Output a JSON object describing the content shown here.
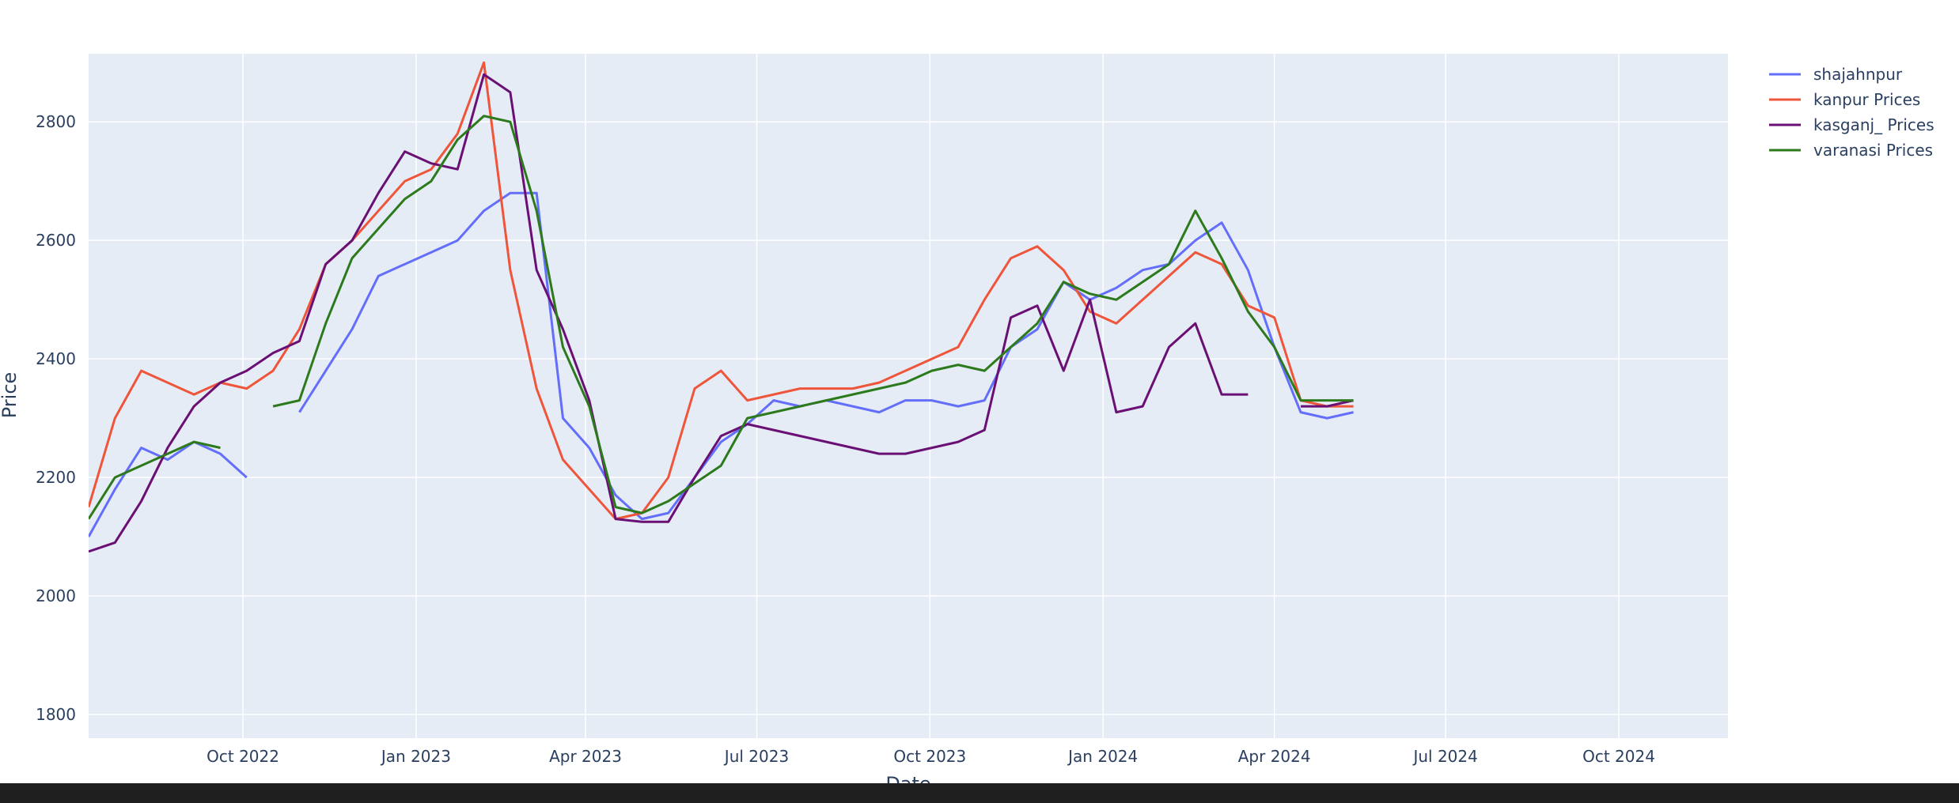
{
  "chart_data": {
    "type": "line",
    "title": "",
    "xlabel": "Date",
    "ylabel": "Price",
    "xlim": [
      "2022-07-11",
      "2024-11-28"
    ],
    "ylim": [
      1760,
      2915
    ],
    "grid": true,
    "legend_position": "top-right",
    "x_ticks": [
      {
        "date": "2022-10-01",
        "label": "Oct 2022"
      },
      {
        "date": "2023-01-01",
        "label": "Jan 2023"
      },
      {
        "date": "2023-04-01",
        "label": "Apr 2023"
      },
      {
        "date": "2023-07-01",
        "label": "Jul 2023"
      },
      {
        "date": "2023-10-01",
        "label": "Oct 2023"
      },
      {
        "date": "2024-01-01",
        "label": "Jan 2024"
      },
      {
        "date": "2024-04-01",
        "label": "Apr 2024"
      },
      {
        "date": "2024-07-01",
        "label": "Jul 2024"
      },
      {
        "date": "2024-10-01",
        "label": "Oct 2024"
      }
    ],
    "y_ticks": [
      1800,
      2000,
      2200,
      2400,
      2600,
      2800
    ],
    "series": [
      {
        "name": "shajahnpur",
        "color": "#636efa",
        "x": [
          "2022-07-11",
          "2022-07-25",
          "2022-08-08",
          "2022-08-22",
          "2022-09-05",
          "2022-09-19",
          "2022-10-03",
          "2022-10-17",
          "2022-10-31",
          "2022-11-14",
          "2022-11-28",
          "2022-12-12",
          "2022-12-26",
          "2023-01-09",
          "2023-01-23",
          "2023-02-06",
          "2023-02-20",
          "2023-03-06",
          "2023-03-20",
          "2023-04-03",
          "2023-04-17",
          "2023-05-01",
          "2023-05-15",
          "2023-05-29",
          "2023-06-12",
          "2023-06-26",
          "2023-07-10",
          "2023-07-24",
          "2023-08-07",
          "2023-08-21",
          "2023-09-04",
          "2023-09-18",
          "2023-10-02",
          "2023-10-16",
          "2023-10-30",
          "2023-11-13",
          "2023-11-27",
          "2023-12-11",
          "2023-12-25",
          "2024-01-08",
          "2024-01-22",
          "2024-02-05",
          "2024-02-19",
          "2024-03-04",
          "2024-03-18",
          "2024-04-01",
          "2024-04-15",
          "2024-04-29",
          "2024-05-13"
        ],
        "y": [
          2100,
          2180,
          2250,
          2230,
          2260,
          2240,
          2200,
          null,
          2310,
          2380,
          2450,
          2540,
          2560,
          2580,
          2600,
          2650,
          2680,
          2680,
          2300,
          2250,
          2170,
          2130,
          2140,
          2200,
          2260,
          2290,
          2330,
          2320,
          2330,
          2320,
          2310,
          2330,
          2330,
          2320,
          2330,
          2420,
          2450,
          2530,
          2500,
          2520,
          2550,
          2560,
          2600,
          2630,
          2550,
          2420,
          2310,
          2300,
          2310
        ]
      },
      {
        "name": "kanpur Prices",
        "color": "#ef553b",
        "x": [
          "2022-07-11",
          "2022-07-25",
          "2022-08-08",
          "2022-08-22",
          "2022-09-05",
          "2022-09-19",
          "2022-10-03",
          "2022-10-17",
          "2022-10-31",
          "2022-11-14",
          "2022-11-28",
          "2022-12-12",
          "2022-12-26",
          "2023-01-09",
          "2023-01-23",
          "2023-02-06",
          "2023-02-20",
          "2023-03-06",
          "2023-03-20",
          "2023-04-03",
          "2023-04-17",
          "2023-05-01",
          "2023-05-15",
          "2023-05-29",
          "2023-06-12",
          "2023-06-26",
          "2023-07-10",
          "2023-07-24",
          "2023-08-07",
          "2023-08-21",
          "2023-09-04",
          "2023-09-18",
          "2023-10-02",
          "2023-10-16",
          "2023-10-30",
          "2023-11-13",
          "2023-11-27",
          "2023-12-11",
          "2023-12-25",
          "2024-01-08",
          "2024-01-22",
          "2024-02-05",
          "2024-02-19",
          "2024-03-04",
          "2024-03-18",
          "2024-04-01",
          "2024-04-15",
          "2024-04-29",
          "2024-05-13"
        ],
        "y": [
          2150,
          2300,
          2380,
          2360,
          2340,
          2360,
          2350,
          2380,
          2450,
          2560,
          2600,
          2650,
          2700,
          2720,
          2780,
          2900,
          2550,
          2350,
          2230,
          2180,
          2130,
          2140,
          2200,
          2350,
          2380,
          2330,
          2340,
          2350,
          2350,
          2350,
          2360,
          2380,
          2400,
          2420,
          2500,
          2570,
          2590,
          2550,
          2480,
          2460,
          2500,
          2540,
          2580,
          2560,
          2490,
          2470,
          2330,
          2320,
          2320
        ]
      },
      {
        "name": "kasganj_ Prices",
        "color": "#6a0f74",
        "x": [
          "2022-07-11",
          "2022-07-25",
          "2022-08-08",
          "2022-08-22",
          "2022-09-05",
          "2022-09-19",
          "2022-10-03",
          "2022-10-17",
          "2022-10-31",
          "2022-11-14",
          "2022-11-28",
          "2022-12-12",
          "2022-12-26",
          "2023-01-09",
          "2023-01-23",
          "2023-02-06",
          "2023-02-20",
          "2023-03-06",
          "2023-03-20",
          "2023-04-03",
          "2023-04-17",
          "2023-05-01",
          "2023-05-15",
          "2023-05-29",
          "2023-06-12",
          "2023-06-26",
          "2023-07-10",
          "2023-07-24",
          "2023-08-07",
          "2023-08-21",
          "2023-09-04",
          "2023-09-18",
          "2023-10-02",
          "2023-10-16",
          "2023-10-30",
          "2023-11-13",
          "2023-11-27",
          "2023-12-11",
          "2023-12-25",
          "2024-01-08",
          "2024-01-22",
          "2024-02-05",
          "2024-02-19",
          "2024-03-04",
          "2024-03-18",
          "2024-04-01",
          "2024-04-15",
          "2024-04-29",
          "2024-05-13"
        ],
        "y": [
          2075,
          2090,
          2160,
          2250,
          2320,
          2360,
          2380,
          2410,
          2430,
          2560,
          2600,
          2680,
          2750,
          2730,
          2720,
          2880,
          2850,
          2550,
          2450,
          2330,
          2130,
          2125,
          2125,
          2200,
          2270,
          2290,
          2280,
          2270,
          2260,
          2250,
          2240,
          2240,
          2250,
          2260,
          2280,
          2470,
          2490,
          2380,
          2500,
          2310,
          2320,
          2420,
          2460,
          2340,
          2340,
          null,
          2320,
          2320,
          2330
        ]
      },
      {
        "name": "varanasi Prices",
        "color": "#2c7a1c",
        "x": [
          "2022-07-11",
          "2022-07-25",
          "2022-08-08",
          "2022-08-22",
          "2022-09-05",
          "2022-09-19",
          "2022-10-03",
          "2022-10-17",
          "2022-10-31",
          "2022-11-14",
          "2022-11-28",
          "2022-12-12",
          "2022-12-26",
          "2023-01-09",
          "2023-01-23",
          "2023-02-06",
          "2023-02-20",
          "2023-03-06",
          "2023-03-20",
          "2023-04-03",
          "2023-04-17",
          "2023-05-01",
          "2023-05-15",
          "2023-05-29",
          "2023-06-12",
          "2023-06-26",
          "2023-07-10",
          "2023-07-24",
          "2023-08-07",
          "2023-08-21",
          "2023-09-04",
          "2023-09-18",
          "2023-10-02",
          "2023-10-16",
          "2023-10-30",
          "2023-11-13",
          "2023-11-27",
          "2023-12-11",
          "2023-12-25",
          "2024-01-08",
          "2024-01-22",
          "2024-02-05",
          "2024-02-19",
          "2024-03-04",
          "2024-03-18",
          "2024-04-01",
          "2024-04-15",
          "2024-04-29",
          "2024-05-13"
        ],
        "y": [
          2130,
          2200,
          2220,
          2240,
          2260,
          2250,
          null,
          2320,
          2330,
          2460,
          2570,
          2620,
          2670,
          2700,
          2770,
          2810,
          2800,
          2650,
          2420,
          2320,
          2150,
          2140,
          2160,
          2190,
          2220,
          2300,
          2310,
          2320,
          2330,
          2340,
          2350,
          2360,
          2380,
          2390,
          2380,
          2420,
          2460,
          2530,
          2510,
          2500,
          2530,
          2560,
          2650,
          2570,
          2480,
          2420,
          2330,
          2330,
          2330
        ]
      }
    ]
  }
}
